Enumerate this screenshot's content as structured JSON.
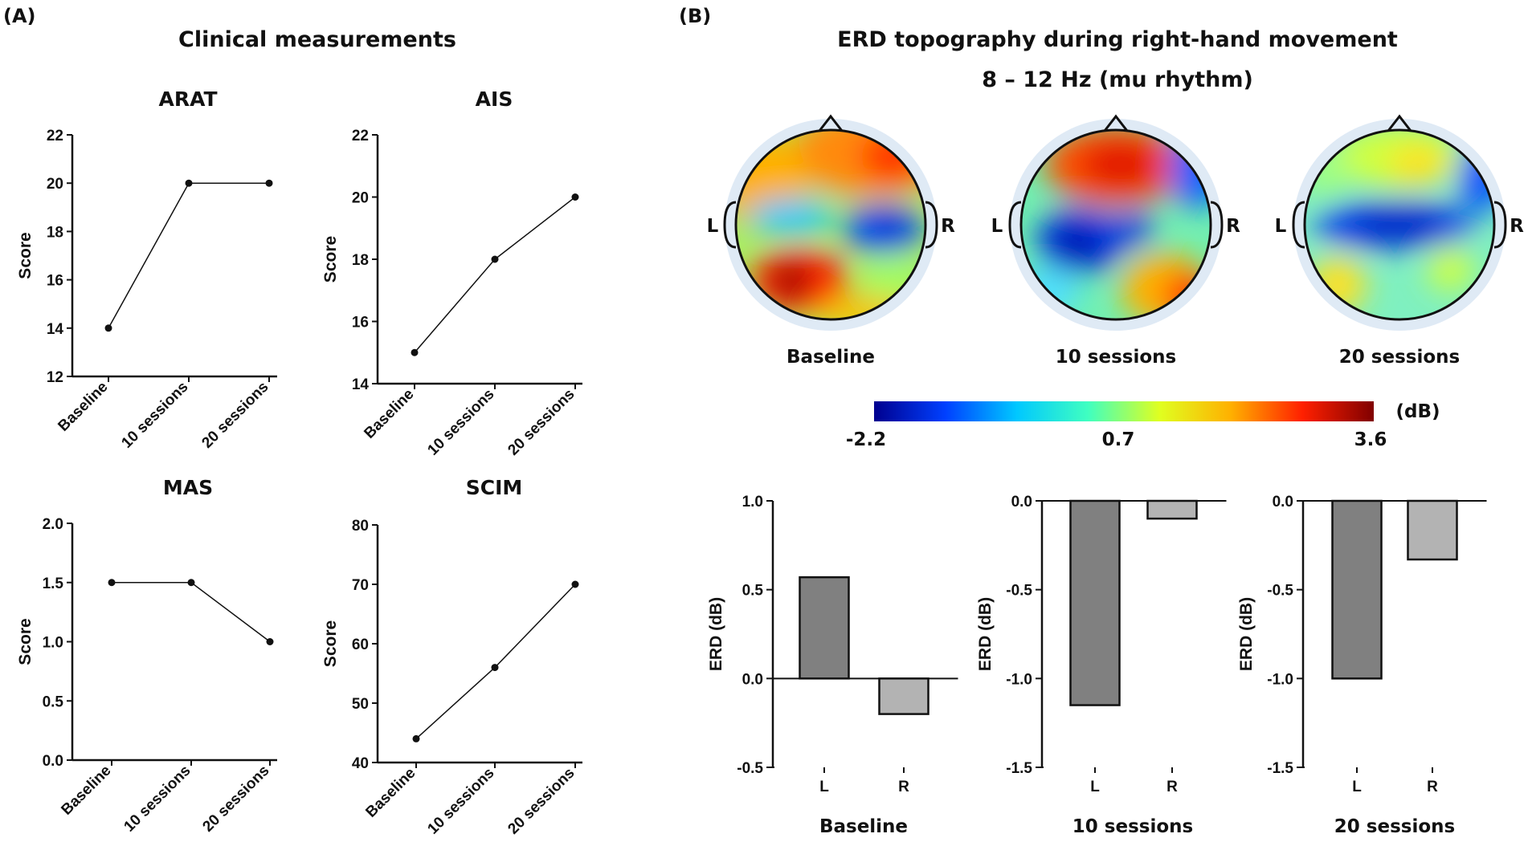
{
  "panels": {
    "a_label": "(A)",
    "b_label": "(B)",
    "a_title": "Clinical measurements",
    "b_title_line1": "ERD topography during right-hand movement",
    "b_title_line2": "8 – 12 Hz (mu rhythm)"
  },
  "topography": {
    "left_label": "L",
    "right_label": "R",
    "maps": [
      {
        "caption": "Baseline"
      },
      {
        "caption": "10 sessions"
      },
      {
        "caption": "20 sessions"
      }
    ]
  },
  "colorbar": {
    "unit": "(dB)",
    "min_label": "-2.2",
    "mid_label": "0.7",
    "max_label": "3.6",
    "colors": [
      "#00008f",
      "#0040ff",
      "#00c8ff",
      "#40ffc0",
      "#e0ff20",
      "#ffb000",
      "#ff2000",
      "#800000"
    ]
  },
  "chart_data": [
    {
      "type": "line",
      "title": "ARAT",
      "ylabel": "Score",
      "xlabel": "",
      "categories": [
        "Baseline",
        "10 sessions",
        "20 sessions"
      ],
      "values": [
        14,
        20,
        20
      ],
      "ylim": [
        12,
        22
      ],
      "yticks": [
        "12",
        "14",
        "16",
        "18",
        "20",
        "22"
      ]
    },
    {
      "type": "line",
      "title": "AIS",
      "ylabel": "Score",
      "xlabel": "",
      "categories": [
        "Baseline",
        "10 sessions",
        "20 sessions"
      ],
      "values": [
        15,
        18,
        20
      ],
      "ylim": [
        14,
        22
      ],
      "yticks": [
        "14",
        "16",
        "18",
        "20",
        "22"
      ]
    },
    {
      "type": "line",
      "title": "MAS",
      "ylabel": "Score",
      "xlabel": "",
      "categories": [
        "Baseline",
        "10 sessions",
        "20 sessions"
      ],
      "values": [
        1.5,
        1.5,
        1.0
      ],
      "ylim": [
        0,
        2
      ],
      "yticks": [
        "0.0",
        "0.5",
        "1.0",
        "1.5",
        "2.0"
      ]
    },
    {
      "type": "line",
      "title": "SCIM",
      "ylabel": "Score",
      "xlabel": "",
      "categories": [
        "Baseline",
        "10 sessions",
        "20 sessions"
      ],
      "values": [
        44,
        56,
        70
      ],
      "ylim": [
        40,
        80
      ],
      "yticks": [
        "40",
        "50",
        "60",
        "70",
        "80"
      ]
    },
    {
      "type": "bar",
      "title": "",
      "xlabel": "Baseline",
      "ylabel": "ERD (dB)",
      "categories": [
        "L",
        "R"
      ],
      "values": [
        0.57,
        -0.2
      ],
      "ylim": [
        -0.5,
        1.0
      ],
      "yticks": [
        "-0.5",
        "0.0",
        "0.5",
        "1.0"
      ],
      "bar_colors": [
        "#808080",
        "#b3b3b3"
      ]
    },
    {
      "type": "bar",
      "title": "",
      "xlabel": "10 sessions",
      "ylabel": "ERD (dB)",
      "categories": [
        "L",
        "R"
      ],
      "values": [
        -1.15,
        -0.1
      ],
      "ylim": [
        -1.5,
        0.0
      ],
      "yticks": [
        "-1.5",
        "-1.0",
        "-0.5",
        "0.0"
      ],
      "bar_colors": [
        "#808080",
        "#b3b3b3"
      ]
    },
    {
      "type": "bar",
      "title": "",
      "xlabel": "20 sessions",
      "ylabel": "ERD (dB)",
      "categories": [
        "L",
        "R"
      ],
      "values": [
        -1.0,
        -0.33
      ],
      "ylim": [
        -1.5,
        0.0
      ],
      "yticks": [
        "-1.5",
        "-1.0",
        "-0.5",
        "0.0"
      ],
      "bar_colors": [
        "#808080",
        "#b3b3b3"
      ]
    }
  ]
}
